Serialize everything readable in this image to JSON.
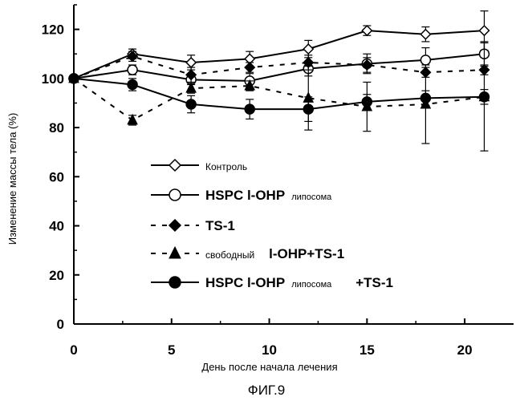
{
  "chart_data": {
    "type": "line",
    "title": "",
    "xlabel": "День после начала лечения",
    "ylabel": "Изменение массы тела (%)",
    "xlim": [
      0,
      22.5
    ],
    "ylim": [
      0,
      130
    ],
    "xticks": [
      0,
      5,
      10,
      15,
      20
    ],
    "yticks": [
      0,
      20,
      40,
      60,
      80,
      100,
      120
    ],
    "grid": false,
    "legend_position": "center",
    "series": [
      {
        "name": "Контроль",
        "line": "solid",
        "marker": "open-diamond",
        "x": [
          0,
          3,
          6,
          9,
          12,
          15,
          18,
          21
        ],
        "y": [
          100,
          110,
          106.5,
          108,
          112,
          119.5,
          118,
          119.5
        ],
        "err": [
          0,
          2,
          3,
          3,
          3.5,
          2,
          3,
          8
        ]
      },
      {
        "name_parts": [
          "HSPC l-OHP",
          "липосома"
        ],
        "line": "solid",
        "marker": "open-circle",
        "x": [
          0,
          3,
          6,
          9,
          12,
          15,
          18,
          21
        ],
        "y": [
          100,
          103.5,
          99.5,
          99,
          104,
          106,
          107.5,
          110
        ],
        "err": [
          0,
          2,
          2,
          3,
          3,
          4,
          5,
          5
        ]
      },
      {
        "name": "TS-1",
        "line": "dashed",
        "marker": "filled-diamond",
        "x": [
          0,
          3,
          6,
          9,
          12,
          15,
          18,
          21
        ],
        "y": [
          100,
          109,
          101.5,
          104.5,
          106.5,
          105.5,
          102.5,
          103.5
        ],
        "err": [
          0,
          2,
          3,
          2,
          3,
          3,
          2,
          2
        ]
      },
      {
        "name_parts": [
          "свободный",
          "l-OHP+TS-1"
        ],
        "line": "dashed",
        "marker": "filled-triangle",
        "x": [
          0,
          3,
          6,
          9,
          12,
          15,
          18,
          21
        ],
        "y": [
          100,
          83,
          96,
          97,
          92,
          88.5,
          89.5,
          92.5
        ],
        "err": [
          0,
          2,
          2,
          2,
          13,
          10,
          16,
          22
        ]
      },
      {
        "name_parts": [
          "HSPC l-OHP",
          "липосома",
          "+TS-1"
        ],
        "line": "solid",
        "marker": "filled-circle",
        "x": [
          0,
          3,
          6,
          9,
          12,
          15,
          18,
          21
        ],
        "y": [
          100,
          97.5,
          89.5,
          87.5,
          87.5,
          90.5,
          92,
          92.5
        ],
        "err": [
          0,
          2.5,
          3.5,
          4,
          5,
          3,
          3,
          3
        ]
      }
    ]
  },
  "caption": "ФИГ.9"
}
